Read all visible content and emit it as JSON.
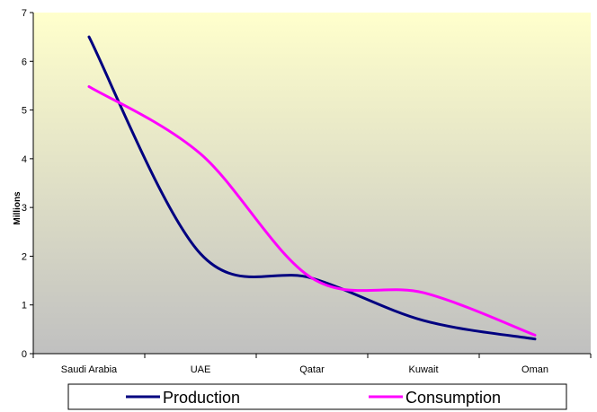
{
  "chart_data": {
    "type": "line",
    "categories": [
      "Saudi Arabia",
      "UAE",
      "Qatar",
      "Kuwait",
      "Oman"
    ],
    "ylabel": "Millions",
    "ylim": [
      0,
      7
    ],
    "yticks": [
      "0",
      "1",
      "2",
      "3",
      "4",
      "5",
      "6",
      "7"
    ],
    "grid": false,
    "smooth": true,
    "legend": "bottom",
    "plot_background": "gradient from #FFFFCC at top to #C0C0C0 at bottom",
    "series": [
      {
        "name": "Production",
        "color": "#000080",
        "values": [
          6.5,
          2.05,
          1.55,
          0.68,
          0.3
        ]
      },
      {
        "name": "Consumption",
        "color": "#FF00FF",
        "values": [
          5.48,
          4.1,
          1.55,
          1.25,
          0.38
        ]
      }
    ]
  }
}
